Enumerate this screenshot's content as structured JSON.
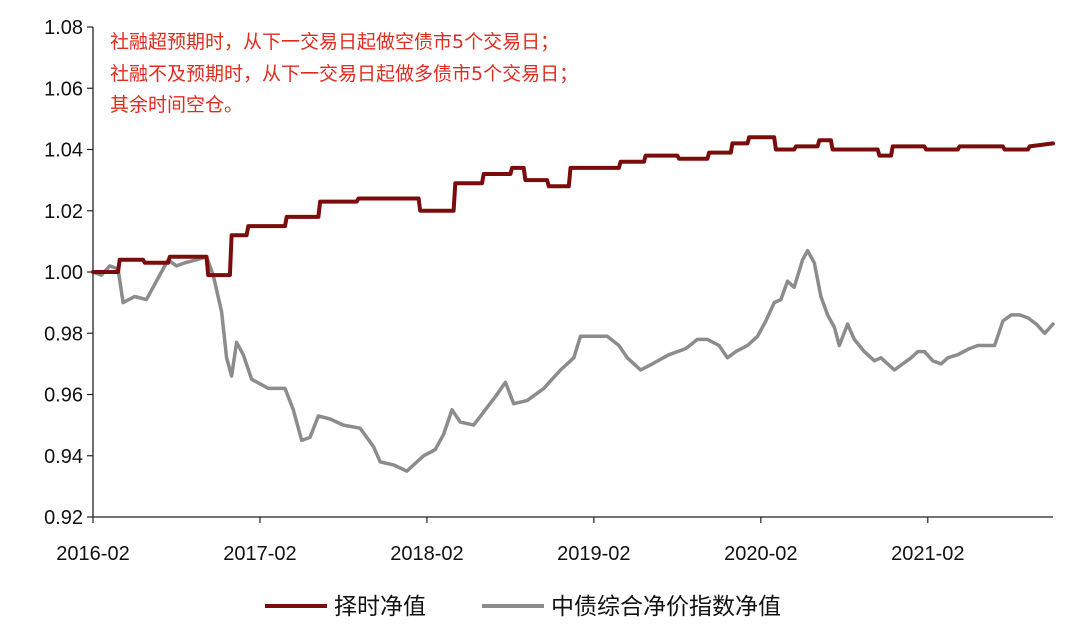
{
  "chart_data": {
    "type": "line",
    "title": "",
    "xlabel": "",
    "ylabel": "",
    "ylim": [
      0.92,
      1.08
    ],
    "yticks": [
      "0.92",
      "0.94",
      "0.96",
      "0.98",
      "1.00",
      "1.02",
      "1.04",
      "1.06",
      "1.08"
    ],
    "xlim": [
      2016.0,
      2021.75
    ],
    "xticks": [
      {
        "value": 2016.0,
        "label": "2016-02"
      },
      {
        "value": 2017.0,
        "label": "2017-02"
      },
      {
        "value": 2018.0,
        "label": "2018-02"
      },
      {
        "value": 2019.0,
        "label": "2019-02"
      },
      {
        "value": 2020.0,
        "label": "2020-02"
      },
      {
        "value": 2021.0,
        "label": "2021-02"
      }
    ],
    "annotation": [
      "社融超预期时，从下一交易日起做空债市5个交易日；",
      "社融不及预期时，从下一交易日起做多债市5个交易日；",
      "其余时间空仓。"
    ],
    "legend_position": "bottom",
    "series": [
      {
        "name": "择时净值",
        "color": "#7b0c0c",
        "step": true,
        "points": [
          [
            2016.0,
            1.0
          ],
          [
            2016.15,
            1.0
          ],
          [
            2016.16,
            1.004
          ],
          [
            2016.3,
            1.004
          ],
          [
            2016.31,
            1.003
          ],
          [
            2016.45,
            1.003
          ],
          [
            2016.46,
            1.005
          ],
          [
            2016.68,
            1.005
          ],
          [
            2016.69,
            0.999
          ],
          [
            2016.82,
            0.999
          ],
          [
            2016.83,
            1.012
          ],
          [
            2016.92,
            1.012
          ],
          [
            2016.93,
            1.015
          ],
          [
            2017.15,
            1.015
          ],
          [
            2017.16,
            1.018
          ],
          [
            2017.35,
            1.018
          ],
          [
            2017.36,
            1.023
          ],
          [
            2017.58,
            1.023
          ],
          [
            2017.59,
            1.024
          ],
          [
            2017.95,
            1.024
          ],
          [
            2017.96,
            1.02
          ],
          [
            2018.16,
            1.02
          ],
          [
            2018.17,
            1.029
          ],
          [
            2018.33,
            1.029
          ],
          [
            2018.34,
            1.032
          ],
          [
            2018.5,
            1.032
          ],
          [
            2018.51,
            1.034
          ],
          [
            2018.58,
            1.034
          ],
          [
            2018.59,
            1.03
          ],
          [
            2018.72,
            1.03
          ],
          [
            2018.73,
            1.028
          ],
          [
            2018.85,
            1.028
          ],
          [
            2018.86,
            1.034
          ],
          [
            2019.15,
            1.034
          ],
          [
            2019.16,
            1.036
          ],
          [
            2019.3,
            1.036
          ],
          [
            2019.31,
            1.038
          ],
          [
            2019.5,
            1.038
          ],
          [
            2019.51,
            1.037
          ],
          [
            2019.68,
            1.037
          ],
          [
            2019.69,
            1.039
          ],
          [
            2019.82,
            1.039
          ],
          [
            2019.83,
            1.042
          ],
          [
            2019.92,
            1.042
          ],
          [
            2019.93,
            1.044
          ],
          [
            2020.08,
            1.044
          ],
          [
            2020.09,
            1.04
          ],
          [
            2020.2,
            1.04
          ],
          [
            2020.21,
            1.041
          ],
          [
            2020.34,
            1.041
          ],
          [
            2020.35,
            1.043
          ],
          [
            2020.42,
            1.043
          ],
          [
            2020.43,
            1.04
          ],
          [
            2020.7,
            1.04
          ],
          [
            2020.71,
            1.038
          ],
          [
            2020.78,
            1.038
          ],
          [
            2020.79,
            1.041
          ],
          [
            2020.98,
            1.041
          ],
          [
            2020.99,
            1.04
          ],
          [
            2021.18,
            1.04
          ],
          [
            2021.19,
            1.041
          ],
          [
            2021.45,
            1.041
          ],
          [
            2021.46,
            1.04
          ],
          [
            2021.6,
            1.04
          ],
          [
            2021.61,
            1.041
          ],
          [
            2021.75,
            1.042
          ]
        ]
      },
      {
        "name": "中债综合净价指数净值",
        "color": "#8c8c8c",
        "step": false,
        "points": [
          [
            2016.0,
            1.0
          ],
          [
            2016.05,
            0.999
          ],
          [
            2016.1,
            1.002
          ],
          [
            2016.15,
            1.001
          ],
          [
            2016.18,
            0.99
          ],
          [
            2016.25,
            0.992
          ],
          [
            2016.32,
            0.991
          ],
          [
            2016.38,
            0.997
          ],
          [
            2016.45,
            1.004
          ],
          [
            2016.5,
            1.002
          ],
          [
            2016.55,
            1.003
          ],
          [
            2016.62,
            1.004
          ],
          [
            2016.68,
            1.005
          ],
          [
            2016.72,
            0.999
          ],
          [
            2016.77,
            0.987
          ],
          [
            2016.8,
            0.972
          ],
          [
            2016.83,
            0.966
          ],
          [
            2016.86,
            0.977
          ],
          [
            2016.9,
            0.973
          ],
          [
            2016.95,
            0.965
          ],
          [
            2017.05,
            0.962
          ],
          [
            2017.15,
            0.962
          ],
          [
            2017.2,
            0.955
          ],
          [
            2017.25,
            0.945
          ],
          [
            2017.3,
            0.946
          ],
          [
            2017.35,
            0.953
          ],
          [
            2017.42,
            0.952
          ],
          [
            2017.5,
            0.95
          ],
          [
            2017.6,
            0.949
          ],
          [
            2017.68,
            0.943
          ],
          [
            2017.72,
            0.938
          ],
          [
            2017.8,
            0.937
          ],
          [
            2017.88,
            0.935
          ],
          [
            2017.92,
            0.937
          ],
          [
            2017.98,
            0.94
          ],
          [
            2018.05,
            0.942
          ],
          [
            2018.1,
            0.947
          ],
          [
            2018.15,
            0.955
          ],
          [
            2018.2,
            0.951
          ],
          [
            2018.28,
            0.95
          ],
          [
            2018.35,
            0.955
          ],
          [
            2018.42,
            0.96
          ],
          [
            2018.47,
            0.964
          ],
          [
            2018.52,
            0.957
          ],
          [
            2018.6,
            0.958
          ],
          [
            2018.7,
            0.962
          ],
          [
            2018.8,
            0.968
          ],
          [
            2018.88,
            0.972
          ],
          [
            2018.92,
            0.979
          ],
          [
            2019.0,
            0.979
          ],
          [
            2019.08,
            0.979
          ],
          [
            2019.15,
            0.976
          ],
          [
            2019.2,
            0.972
          ],
          [
            2019.28,
            0.968
          ],
          [
            2019.35,
            0.97
          ],
          [
            2019.45,
            0.973
          ],
          [
            2019.55,
            0.975
          ],
          [
            2019.62,
            0.978
          ],
          [
            2019.68,
            0.978
          ],
          [
            2019.75,
            0.976
          ],
          [
            2019.8,
            0.972
          ],
          [
            2019.85,
            0.974
          ],
          [
            2019.92,
            0.976
          ],
          [
            2019.98,
            0.979
          ],
          [
            2020.03,
            0.984
          ],
          [
            2020.08,
            0.99
          ],
          [
            2020.12,
            0.991
          ],
          [
            2020.16,
            0.997
          ],
          [
            2020.2,
            0.995
          ],
          [
            2020.25,
            1.004
          ],
          [
            2020.28,
            1.007
          ],
          [
            2020.32,
            1.003
          ],
          [
            2020.36,
            0.992
          ],
          [
            2020.4,
            0.986
          ],
          [
            2020.44,
            0.982
          ],
          [
            2020.47,
            0.976
          ],
          [
            2020.52,
            0.983
          ],
          [
            2020.56,
            0.978
          ],
          [
            2020.62,
            0.974
          ],
          [
            2020.68,
            0.971
          ],
          [
            2020.72,
            0.972
          ],
          [
            2020.76,
            0.97
          ],
          [
            2020.8,
            0.968
          ],
          [
            2020.85,
            0.97
          ],
          [
            2020.9,
            0.972
          ],
          [
            2020.94,
            0.974
          ],
          [
            2020.98,
            0.974
          ],
          [
            2021.03,
            0.971
          ],
          [
            2021.08,
            0.97
          ],
          [
            2021.12,
            0.972
          ],
          [
            2021.18,
            0.973
          ],
          [
            2021.25,
            0.975
          ],
          [
            2021.3,
            0.976
          ],
          [
            2021.35,
            0.976
          ],
          [
            2021.4,
            0.976
          ],
          [
            2021.45,
            0.984
          ],
          [
            2021.5,
            0.986
          ],
          [
            2021.55,
            0.986
          ],
          [
            2021.6,
            0.985
          ],
          [
            2021.65,
            0.983
          ],
          [
            2021.7,
            0.98
          ],
          [
            2021.75,
            0.983
          ]
        ]
      }
    ]
  }
}
